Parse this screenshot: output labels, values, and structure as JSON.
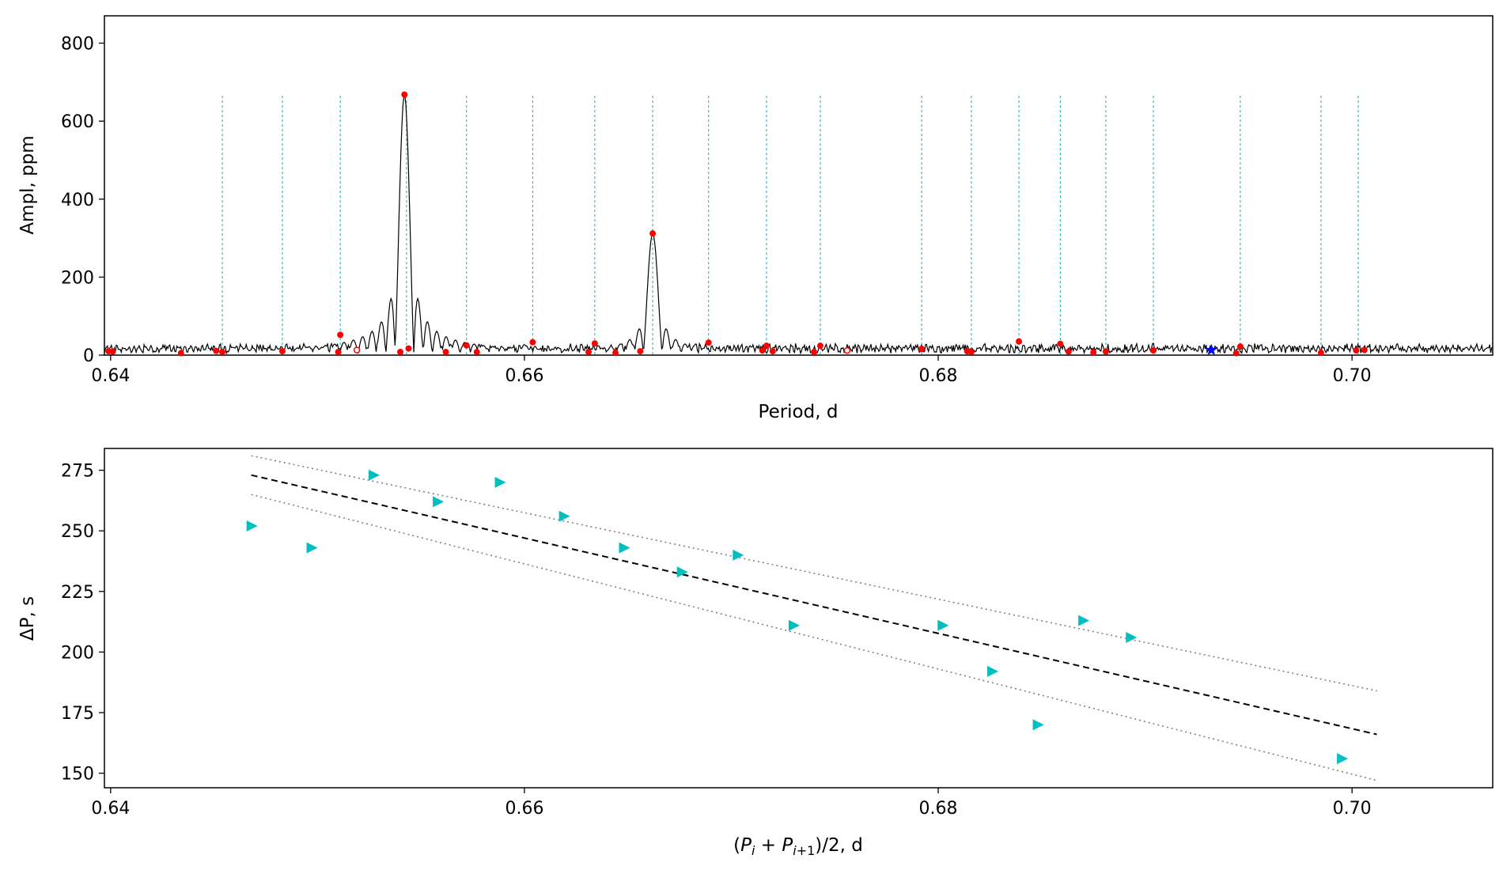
{
  "chart_data": [
    {
      "type": "line",
      "title": "",
      "xlabel": "Period, d",
      "ylabel": "Ampl, ppm",
      "xlim": [
        0.6397,
        0.7068
      ],
      "ylim": [
        0,
        870
      ],
      "xticks": [
        0.64,
        0.66,
        0.68,
        0.7
      ],
      "xtick_labels": [
        "0.64",
        "0.66",
        "0.68",
        "0.70"
      ],
      "yticks": [
        0,
        200,
        400,
        600,
        800
      ],
      "ytick_labels": [
        "0",
        "200",
        "400",
        "600",
        "800"
      ],
      "colors": {
        "spectrum": "#000000",
        "peaks": "#ff0000",
        "grid_lines": "#00bfbf",
        "star": "#0000ff"
      },
      "spectrum_noise_ppm": 30,
      "main_peaks": [
        {
          "period": 0.6542,
          "amplitude": 668
        },
        {
          "period": 0.6662,
          "amplitude": 312
        }
      ],
      "grid_periods": [
        0.6454,
        0.6483,
        0.6511,
        0.6543,
        0.6572,
        0.6604,
        0.6634,
        0.6662,
        0.6689,
        0.6717,
        0.6743,
        0.6792,
        0.6816,
        0.6839,
        0.6859,
        0.6881,
        0.6904,
        0.6946,
        0.6985,
        0.7003
      ],
      "grid_line_height_ppm": 665,
      "peaks": [
        {
          "period": 0.6399,
          "amplitude": 10
        },
        {
          "period": 0.6401,
          "amplitude": 9
        },
        {
          "period": 0.6434,
          "amplitude": 5
        },
        {
          "period": 0.6451,
          "amplitude": 11
        },
        {
          "period": 0.6454,
          "amplitude": 8
        },
        {
          "period": 0.6483,
          "amplitude": 10
        },
        {
          "period": 0.651,
          "amplitude": 8
        },
        {
          "period": 0.6511,
          "amplitude": 52
        },
        {
          "period": 0.654,
          "amplitude": 8
        },
        {
          "period": 0.6542,
          "amplitude": 668
        },
        {
          "period": 0.6544,
          "amplitude": 17
        },
        {
          "period": 0.6562,
          "amplitude": 8
        },
        {
          "period": 0.6572,
          "amplitude": 25
        },
        {
          "period": 0.6577,
          "amplitude": 8
        },
        {
          "period": 0.6604,
          "amplitude": 33
        },
        {
          "period": 0.6631,
          "amplitude": 8
        },
        {
          "period": 0.6634,
          "amplitude": 30
        },
        {
          "period": 0.6644,
          "amplitude": 6
        },
        {
          "period": 0.6656,
          "amplitude": 10
        },
        {
          "period": 0.6662,
          "amplitude": 312
        },
        {
          "period": 0.6689,
          "amplitude": 32
        },
        {
          "period": 0.6715,
          "amplitude": 12
        },
        {
          "period": 0.6717,
          "amplitude": 24
        },
        {
          "period": 0.672,
          "amplitude": 10
        },
        {
          "period": 0.674,
          "amplitude": 8
        },
        {
          "period": 0.6743,
          "amplitude": 24
        },
        {
          "period": 0.6792,
          "amplitude": 16
        },
        {
          "period": 0.6814,
          "amplitude": 10
        },
        {
          "period": 0.6816,
          "amplitude": 8
        },
        {
          "period": 0.6839,
          "amplitude": 35
        },
        {
          "period": 0.6859,
          "amplitude": 29
        },
        {
          "period": 0.6863,
          "amplitude": 9
        },
        {
          "period": 0.6875,
          "amplitude": 7
        },
        {
          "period": 0.6881,
          "amplitude": 9
        },
        {
          "period": 0.6904,
          "amplitude": 12
        },
        {
          "period": 0.6944,
          "amplitude": 5
        },
        {
          "period": 0.6946,
          "amplitude": 22
        },
        {
          "period": 0.6985,
          "amplitude": 6
        },
        {
          "period": 0.7002,
          "amplitude": 12
        },
        {
          "period": 0.7006,
          "amplitude": 13
        }
      ],
      "open_markers": [
        {
          "period": 0.6519,
          "amplitude": 13
        },
        {
          "period": 0.6756,
          "amplitude": 12
        }
      ],
      "star_marker": {
        "period": 0.6932,
        "amplitude": 13
      }
    },
    {
      "type": "scatter",
      "title": "",
      "xlabel": "(P_i + P_{i+1})/2, d",
      "ylabel": "ΔP, s",
      "xlim": [
        0.6397,
        0.7068
      ],
      "ylim": [
        144,
        284
      ],
      "xticks": [
        0.64,
        0.66,
        0.68,
        0.7
      ],
      "xtick_labels": [
        "0.64",
        "0.66",
        "0.68",
        "0.70"
      ],
      "yticks": [
        150,
        175,
        200,
        225,
        250,
        275
      ],
      "ytick_labels": [
        "150",
        "175",
        "200",
        "225",
        "250",
        "275"
      ],
      "colors": {
        "points": "#00bfbf",
        "fit": "#000000",
        "bounds": "#808080"
      },
      "points": [
        {
          "x": 0.6468,
          "y": 252
        },
        {
          "x": 0.6497,
          "y": 243
        },
        {
          "x": 0.6527,
          "y": 273
        },
        {
          "x": 0.6558,
          "y": 262
        },
        {
          "x": 0.6588,
          "y": 270
        },
        {
          "x": 0.6619,
          "y": 256
        },
        {
          "x": 0.6648,
          "y": 243
        },
        {
          "x": 0.6676,
          "y": 233
        },
        {
          "x": 0.6703,
          "y": 240
        },
        {
          "x": 0.673,
          "y": 211
        },
        {
          "x": 0.6802,
          "y": 211
        },
        {
          "x": 0.6826,
          "y": 192
        },
        {
          "x": 0.6848,
          "y": 170
        },
        {
          "x": 0.687,
          "y": 213
        },
        {
          "x": 0.6893,
          "y": 206
        },
        {
          "x": 0.6995,
          "y": 156
        }
      ],
      "fit_line": {
        "x": [
          0.6468,
          0.7012
        ],
        "y": [
          273,
          166
        ]
      },
      "upper_bound": {
        "x": [
          0.6468,
          0.7012
        ],
        "y": [
          281,
          184
        ]
      },
      "lower_bound": {
        "x": [
          0.6468,
          0.7012
        ],
        "y": [
          265,
          147
        ]
      }
    }
  ]
}
